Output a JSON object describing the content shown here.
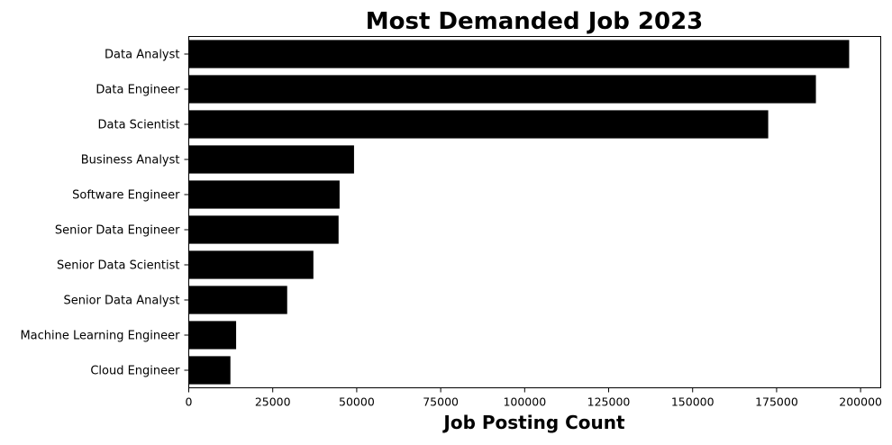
{
  "chart_data": {
    "type": "bar",
    "orientation": "horizontal",
    "title": "Most Demanded Job 2023",
    "xlabel": "Job Posting Count",
    "ylabel": "",
    "categories": [
      "Data Analyst",
      "Data Engineer",
      "Data Scientist",
      "Business Analyst",
      "Software Engineer",
      "Senior Data Engineer",
      "Senior Data Scientist",
      "Senior Data Analyst",
      "Machine Learning Engineer",
      "Cloud Engineer"
    ],
    "values": [
      196600,
      186700,
      172500,
      49200,
      44900,
      44600,
      37100,
      29300,
      14100,
      12400
    ],
    "xlim": [
      0,
      206000
    ],
    "xticks": [
      0,
      25000,
      50000,
      75000,
      100000,
      125000,
      150000,
      175000,
      200000
    ],
    "bar_color": "#000000",
    "grid": false,
    "legend": "none"
  }
}
